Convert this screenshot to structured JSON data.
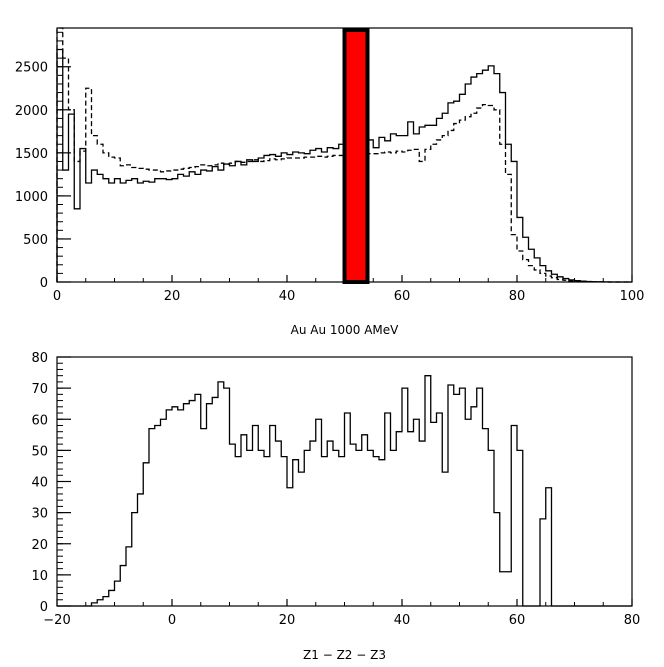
{
  "chart_data": [
    {
      "type": "histogram",
      "xlabel": "Au Au 1000 AMeV",
      "xlim": [
        0,
        100
      ],
      "ylim": [
        0,
        2950
      ],
      "xticks": [
        0,
        20,
        40,
        60,
        80,
        100
      ],
      "yticks": [
        0,
        500,
        1000,
        1500,
        2000,
        2500
      ],
      "xtick_labels": [
        "0",
        "20",
        "40",
        "60",
        "80",
        "100"
      ],
      "ytick_labels": [
        "0",
        "500",
        "1000",
        "1500",
        "2000",
        "2500"
      ],
      "bin_width": 1,
      "bin_start": 0,
      "series": [
        {
          "style": "solid",
          "values": [
            2700,
            1300,
            1950,
            850,
            1550,
            1150,
            1300,
            1250,
            1200,
            1150,
            1200,
            1150,
            1180,
            1200,
            1150,
            1170,
            1160,
            1200,
            1200,
            1190,
            1200,
            1250,
            1230,
            1280,
            1250,
            1300,
            1290,
            1340,
            1300,
            1370,
            1350,
            1400,
            1360,
            1420,
            1400,
            1440,
            1470,
            1480,
            1460,
            1500,
            1480,
            1510,
            1500,
            1490,
            1530,
            1550,
            1510,
            1560,
            1550,
            1600,
            1520,
            1590,
            1600,
            1630,
            1650,
            1560,
            1680,
            1640,
            1720,
            1700,
            1700,
            1860,
            1720,
            1800,
            1820,
            1820,
            1900,
            1960,
            2080,
            2100,
            2180,
            2300,
            2380,
            2420,
            2460,
            2510,
            2420,
            2200,
            1600,
            1400,
            750,
            520,
            380,
            280,
            190,
            130,
            90,
            60,
            40,
            25,
            15,
            10,
            6,
            3,
            2,
            1,
            0,
            0,
            0,
            0
          ]
        },
        {
          "style": "dashed",
          "values": [
            2950,
            2600,
            2000,
            1400,
            1520,
            2250,
            1700,
            1600,
            1500,
            1450,
            1440,
            1350,
            1360,
            1330,
            1320,
            1310,
            1300,
            1300,
            1280,
            1290,
            1300,
            1310,
            1320,
            1330,
            1340,
            1360,
            1350,
            1360,
            1380,
            1370,
            1380,
            1400,
            1390,
            1400,
            1420,
            1400,
            1410,
            1430,
            1420,
            1430,
            1440,
            1440,
            1440,
            1450,
            1450,
            1460,
            1450,
            1460,
            1470,
            1470,
            1460,
            1480,
            1470,
            1480,
            1490,
            1490,
            1500,
            1510,
            1500,
            1520,
            1510,
            1530,
            1540,
            1400,
            1540,
            1600,
            1650,
            1700,
            1760,
            1840,
            1880,
            1920,
            1960,
            2020,
            2060,
            2050,
            2000,
            1600,
            1250,
            550,
            360,
            260,
            190,
            140,
            100,
            70,
            50,
            30,
            20,
            12,
            8,
            5,
            3,
            2,
            1,
            0,
            0,
            0,
            0,
            0
          ]
        }
      ],
      "highlight_box": {
        "x_range": [
          50,
          54
        ],
        "fill": "#ff0000",
        "stroke": "#000000"
      }
    },
    {
      "type": "histogram",
      "xlabel": "Z1 − Z2 − Z3",
      "xlim": [
        -20,
        80
      ],
      "ylim": [
        0,
        80
      ],
      "xticks": [
        -20,
        0,
        20,
        40,
        60,
        80
      ],
      "yticks": [
        0,
        10,
        20,
        30,
        40,
        50,
        60,
        70,
        80
      ],
      "xtick_labels": [
        "−20",
        "0",
        "20",
        "40",
        "60",
        "80"
      ],
      "ytick_labels": [
        "0",
        "10",
        "20",
        "30",
        "40",
        "50",
        "60",
        "70",
        "80"
      ],
      "bin_width": 1,
      "bin_start": -20,
      "series": [
        {
          "style": "solid",
          "values": [
            0,
            0,
            0,
            0,
            0,
            0,
            1,
            2,
            3,
            5,
            8,
            13,
            19,
            30,
            36,
            46,
            57,
            58,
            60,
            63,
            64,
            63,
            65,
            66,
            68,
            57,
            65,
            67,
            72,
            70,
            52,
            48,
            55,
            50,
            58,
            50,
            48,
            58,
            53,
            48,
            38,
            47,
            43,
            50,
            53,
            60,
            48,
            53,
            50,
            48,
            62,
            52,
            50,
            55,
            50,
            48,
            47,
            62,
            50,
            56,
            70,
            56,
            60,
            53,
            74,
            59,
            62,
            43,
            71,
            68,
            70,
            60,
            64,
            70,
            57,
            50,
            30,
            11,
            11,
            58,
            50,
            0,
            0,
            0,
            28,
            38,
            0,
            0,
            0,
            0,
            0,
            0,
            0,
            0,
            0,
            0,
            0,
            0,
            0,
            0
          ]
        }
      ]
    }
  ]
}
